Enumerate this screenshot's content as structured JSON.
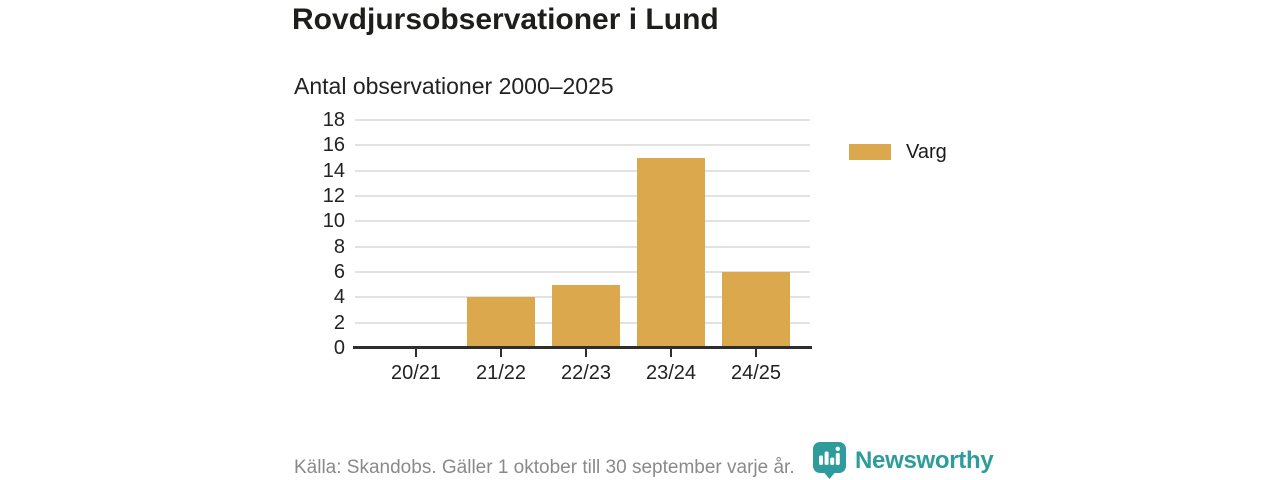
{
  "header": {
    "title": "Rovdjursobservationer i Lund",
    "subtitle": "Antal observationer 2000–2025"
  },
  "chart_data": {
    "type": "bar",
    "categories": [
      "20/21",
      "21/22",
      "22/23",
      "23/24",
      "24/25"
    ],
    "series": [
      {
        "name": "Varg",
        "color": "#DBA84E",
        "values": [
          0,
          4,
          5,
          15,
          6
        ]
      }
    ],
    "title": "Rovdjursobservationer i Lund",
    "subtitle": "Antal observationer 2000–2025",
    "xlabel": "",
    "ylabel": "",
    "ylim": [
      0,
      18
    ],
    "ytick_step": 2,
    "grid": true,
    "legend_position": "right"
  },
  "legend": {
    "items": [
      {
        "label": "Varg",
        "color": "#DBA84E"
      }
    ]
  },
  "footer": {
    "source": "Källa: Skandobs. Gäller 1 oktober till 30 september varje år.",
    "brand": "Newsworthy",
    "brand_color": "#2E9C9C"
  },
  "colors": {
    "bar": "#DBA84E",
    "gridline": "#e2e2e2",
    "axis": "#2e2e2e",
    "text_dark": "#222222",
    "text_muted": "#8a8a8a",
    "accent_teal": "#2E9C9C",
    "background": "#ffffff"
  }
}
